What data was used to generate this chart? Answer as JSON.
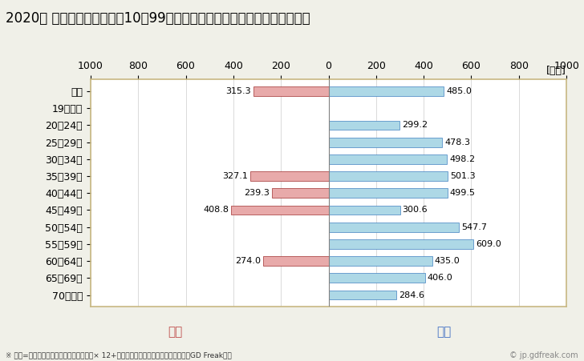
{
  "title": "2020年 民間企業（従業者数10～99人）フルタイム労働者の男女別平均年収",
  "unit_label": "[万円]",
  "categories": [
    "全体",
    "19歳以下",
    "20～24歳",
    "25～29歳",
    "30～34歳",
    "35～39歳",
    "40～44歳",
    "45～49歳",
    "50～54歳",
    "55～59歳",
    "60～64歳",
    "65～69歳",
    "70歳以上"
  ],
  "female_values": [
    315.3,
    0,
    0,
    0,
    0,
    327.1,
    239.3,
    408.8,
    0,
    0,
    274.0,
    0,
    0
  ],
  "male_values": [
    485.0,
    0,
    299.2,
    478.3,
    498.2,
    501.3,
    499.5,
    300.6,
    547.7,
    609.0,
    435.0,
    406.0,
    284.6
  ],
  "female_color": "#E8AAAA",
  "male_color": "#ADD8E6",
  "female_border_color": "#A03030",
  "male_border_color": "#4080C0",
  "female_label": "女性",
  "male_label": "男性",
  "female_label_color": "#C0504D",
  "male_label_color": "#4472C4",
  "xlim": [
    -1000,
    1000
  ],
  "xticks": [
    -1000,
    -800,
    -600,
    -400,
    -200,
    0,
    200,
    400,
    600,
    800,
    1000
  ],
  "xticklabels": [
    "1000",
    "800",
    "600",
    "400",
    "200",
    "0",
    "200",
    "400",
    "600",
    "800",
    "1000"
  ],
  "background_color": "#F0F0E8",
  "plot_bg_color": "#FFFFFF",
  "border_color": "#C8B882",
  "footnote": "※ 年収=「きまって支給する現金給与額」× 12+「年間賞与その他特別給与額」としてGD Freak推計",
  "watermark": "© jp.gdfreak.com",
  "bar_height": 0.55,
  "title_fontsize": 12,
  "tick_fontsize": 9,
  "value_fontsize": 8
}
